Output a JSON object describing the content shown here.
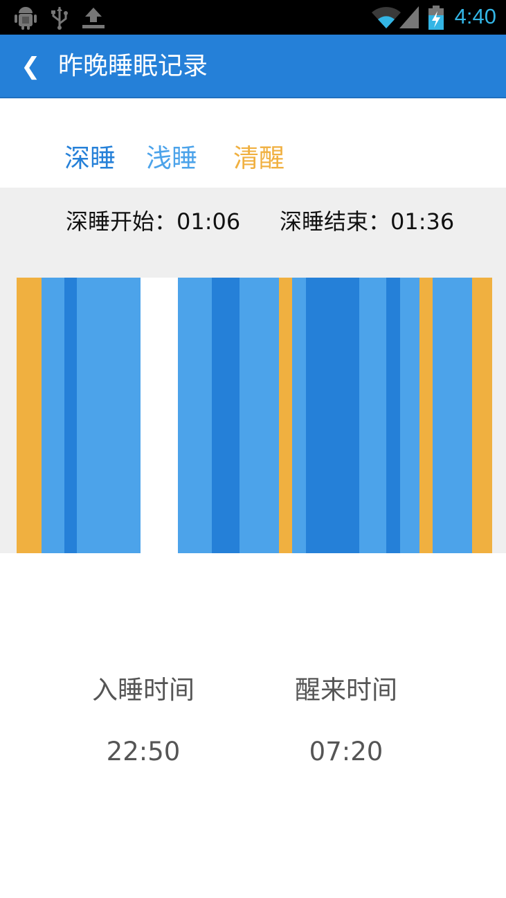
{
  "status_bar": {
    "time": "4:40",
    "left_icons": [
      "android-icon",
      "usb-icon",
      "upload-icon"
    ],
    "right_icons": [
      "wifi-icon",
      "signal-icon",
      "battery-charging-icon"
    ],
    "time_color": "#33b5e5"
  },
  "app_bar": {
    "back_label": "❮",
    "title": "昨晚睡眠记录",
    "background": "#2580d8"
  },
  "legend": {
    "deep": "深睡",
    "light": "浅睡",
    "awake": "清醒"
  },
  "colors": {
    "deep": "#2580d8",
    "light": "#4ca3ea",
    "awake": "#f0b040",
    "gap": "#ffffff",
    "panel": "#efefef"
  },
  "deep_sleep": {
    "start": "深睡开始：01:06",
    "end": "深睡结束：01:36"
  },
  "chart_data": {
    "type": "bar",
    "series": [
      {
        "stage": "awake",
        "width": 36
      },
      {
        "stage": "light",
        "width": 33
      },
      {
        "stage": "deep",
        "width": 18
      },
      {
        "stage": "light",
        "width": 92
      },
      {
        "stage": "gap",
        "width": 54
      },
      {
        "stage": "light",
        "width": 49
      },
      {
        "stage": "deep",
        "width": 40
      },
      {
        "stage": "light",
        "width": 57
      },
      {
        "stage": "awake",
        "width": 19
      },
      {
        "stage": "light",
        "width": 20
      },
      {
        "stage": "deep",
        "width": 77
      },
      {
        "stage": "light",
        "width": 39
      },
      {
        "stage": "deep",
        "width": 20
      },
      {
        "stage": "light",
        "width": 28
      },
      {
        "stage": "awake",
        "width": 19
      },
      {
        "stage": "light",
        "width": 57
      },
      {
        "stage": "awake",
        "width": 29
      }
    ]
  },
  "summary": {
    "sleep_label": "入睡时间",
    "sleep_time": "22:50",
    "wake_label": "醒来时间",
    "wake_time": "07:20"
  }
}
